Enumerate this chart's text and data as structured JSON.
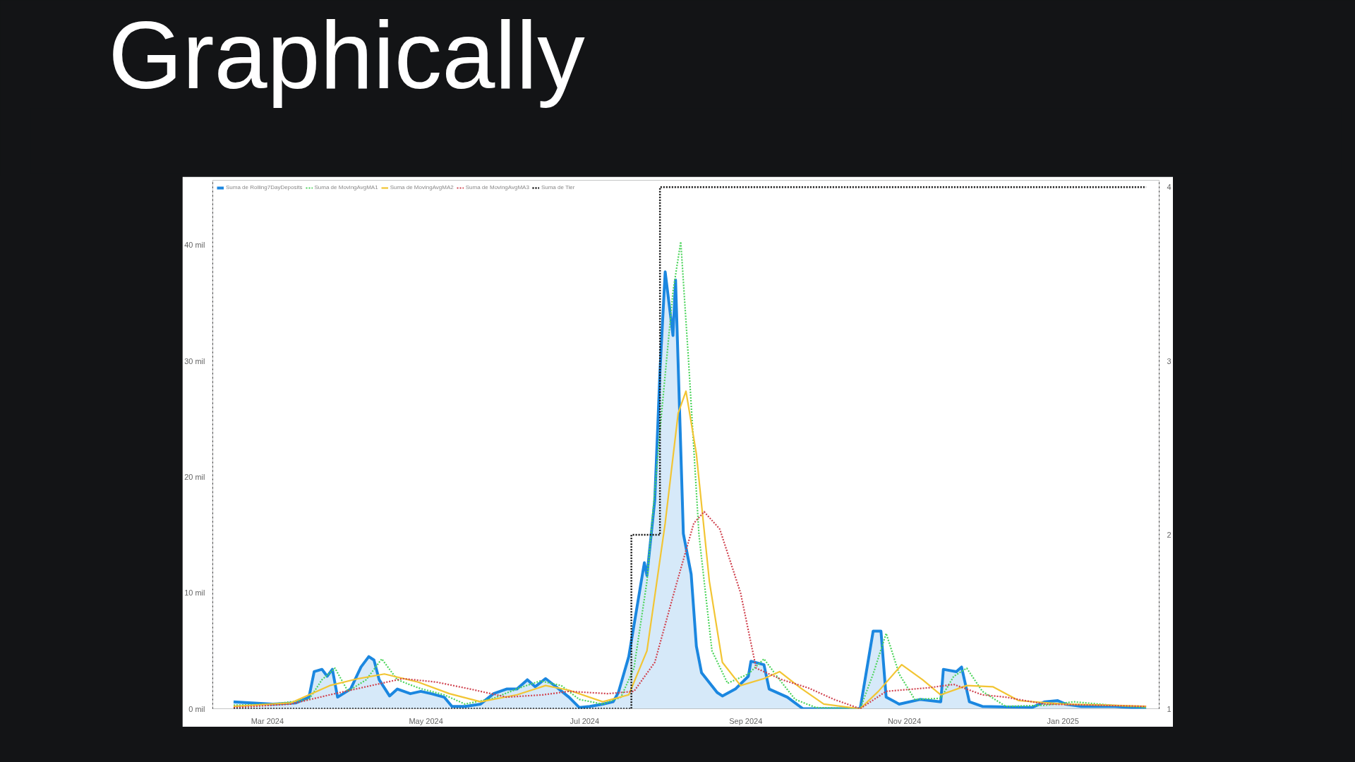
{
  "chart_data": {
    "type": "line",
    "title": "Graphically",
    "legend": "top left",
    "grid": false,
    "xlim": [
      "2024-02-09",
      "2025-02-07"
    ],
    "xticks": [
      {
        "value": "2024-03-01",
        "label": "Mar 2024"
      },
      {
        "value": "2024-05-01",
        "label": "May 2024"
      },
      {
        "value": "2024-07-01",
        "label": "Jul 2024"
      },
      {
        "value": "2024-09-01",
        "label": "Sep 2024"
      },
      {
        "value": "2024-11-01",
        "label": "Nov 2024"
      },
      {
        "value": "2025-01-01",
        "label": "Jan 2025"
      }
    ],
    "ylim": [
      0,
      45.6
    ],
    "yticks": [
      {
        "value": 0,
        "label": "0 mil"
      },
      {
        "value": 10,
        "label": "10 mil"
      },
      {
        "value": 20,
        "label": "20 mil"
      },
      {
        "value": 30,
        "label": "30 mil"
      },
      {
        "value": 40,
        "label": "40 mil"
      }
    ],
    "y2lim": [
      1,
      4.04
    ],
    "y2ticks": [
      1,
      2,
      3,
      4
    ],
    "series": [
      {
        "name": "Suma de Rolling7DayDeposits",
        "type": "area",
        "color": "#1b87e0",
        "line_style": "solid",
        "x": [
          "2024-02-17",
          "2024-02-24",
          "2024-03-03",
          "2024-03-12",
          "2024-03-17",
          "2024-03-19",
          "2024-03-22",
          "2024-03-24",
          "2024-03-26",
          "2024-03-28",
          "2024-04-02",
          "2024-04-06",
          "2024-04-09",
          "2024-04-11",
          "2024-04-13",
          "2024-04-17",
          "2024-04-20",
          "2024-04-25",
          "2024-04-29",
          "2024-05-03",
          "2024-05-08",
          "2024-05-11",
          "2024-05-16",
          "2024-05-22",
          "2024-05-27",
          "2024-06-01",
          "2024-06-05",
          "2024-06-09",
          "2024-06-12",
          "2024-06-16",
          "2024-06-20",
          "2024-06-25",
          "2024-06-29",
          "2024-07-03",
          "2024-07-08",
          "2024-07-12",
          "2024-07-14",
          "2024-07-18",
          "2024-07-24",
          "2024-07-25",
          "2024-07-28",
          "2024-07-30",
          "2024-08-01",
          "2024-08-04",
          "2024-08-05",
          "2024-08-08",
          "2024-08-11",
          "2024-08-13",
          "2024-08-15",
          "2024-08-21",
          "2024-08-23",
          "2024-08-28",
          "2024-09-02",
          "2024-09-03",
          "2024-09-08",
          "2024-09-10",
          "2024-09-17",
          "2024-09-23",
          "2024-10-15",
          "2024-10-20",
          "2024-10-23",
          "2024-10-25",
          "2024-10-30",
          "2024-11-07",
          "2024-11-15",
          "2024-11-16",
          "2024-11-21",
          "2024-11-23",
          "2024-11-26",
          "2024-12-01",
          "2024-12-20",
          "2024-12-25",
          "2024-12-30",
          "2025-01-02",
          "2025-01-08",
          "2025-01-21",
          "2025-02-02"
        ],
        "values": [
          0.6,
          0.5,
          0.4,
          0.5,
          1.0,
          3.2,
          3.4,
          2.8,
          3.4,
          1.0,
          1.7,
          3.6,
          4.5,
          4.2,
          2.5,
          1.1,
          1.7,
          1.3,
          1.5,
          1.3,
          1.0,
          0.2,
          0.2,
          0.4,
          1.3,
          1.7,
          1.7,
          2.5,
          1.9,
          2.6,
          1.9,
          1.0,
          0.1,
          0.2,
          0.4,
          0.6,
          1.4,
          4.5,
          12.6,
          11.5,
          18.0,
          29.1,
          37.7,
          32.2,
          37.0,
          15.1,
          11.6,
          5.4,
          3.1,
          1.4,
          1.1,
          1.7,
          2.8,
          4.1,
          3.8,
          1.7,
          1.0,
          0.0,
          0.0,
          6.7,
          6.7,
          1.0,
          0.4,
          0.8,
          0.6,
          3.4,
          3.2,
          3.6,
          0.6,
          0.2,
          0.1,
          0.6,
          0.7,
          0.4,
          0.2,
          0.2,
          0.0
        ]
      },
      {
        "name": "Suma de MovingAvgMA1",
        "color": "#4cd45b",
        "line_style": "dotted",
        "x": [
          "2024-02-17",
          "2024-03-03",
          "2024-03-17",
          "2024-03-22",
          "2024-03-27",
          "2024-04-01",
          "2024-04-08",
          "2024-04-14",
          "2024-04-20",
          "2024-04-28",
          "2024-05-08",
          "2024-05-16",
          "2024-05-27",
          "2024-06-06",
          "2024-06-14",
          "2024-06-22",
          "2024-06-29",
          "2024-07-08",
          "2024-07-15",
          "2024-07-20",
          "2024-07-25",
          "2024-07-30",
          "2024-08-04",
          "2024-08-07",
          "2024-08-10",
          "2024-08-14",
          "2024-08-19",
          "2024-08-25",
          "2024-09-02",
          "2024-09-08",
          "2024-09-14",
          "2024-09-20",
          "2024-09-28",
          "2024-10-15",
          "2024-10-20",
          "2024-10-25",
          "2024-10-30",
          "2024-11-05",
          "2024-11-15",
          "2024-11-20",
          "2024-11-25",
          "2024-12-01",
          "2024-12-10",
          "2024-12-25",
          "2025-01-05",
          "2025-01-20",
          "2025-02-02"
        ],
        "values": [
          0.3,
          0.4,
          0.8,
          2.5,
          3.5,
          1.5,
          2.5,
          4.3,
          2.5,
          1.8,
          1.2,
          0.4,
          0.9,
          1.8,
          2.4,
          2.0,
          0.8,
          0.4,
          1.0,
          3.5,
          11.0,
          24.0,
          36.0,
          40.3,
          30.0,
          15.0,
          5.0,
          2.2,
          3.0,
          4.3,
          2.5,
          0.8,
          0.1,
          0.0,
          3.0,
          6.5,
          3.0,
          0.8,
          0.9,
          2.8,
          3.5,
          1.5,
          0.2,
          0.3,
          0.6,
          0.3,
          0.1
        ]
      },
      {
        "name": "Suma de MovingAvgMA2",
        "color": "#f2c534",
        "line_style": "solid",
        "x": [
          "2024-02-17",
          "2024-03-10",
          "2024-03-25",
          "2024-04-05",
          "2024-04-15",
          "2024-04-28",
          "2024-05-10",
          "2024-05-22",
          "2024-06-05",
          "2024-06-16",
          "2024-06-25",
          "2024-07-08",
          "2024-07-18",
          "2024-07-25",
          "2024-08-01",
          "2024-08-06",
          "2024-08-09",
          "2024-08-13",
          "2024-08-18",
          "2024-08-23",
          "2024-08-30",
          "2024-09-08",
          "2024-09-14",
          "2024-09-22",
          "2024-10-01",
          "2024-10-15",
          "2024-10-22",
          "2024-10-31",
          "2024-11-08",
          "2024-11-15",
          "2024-11-25",
          "2024-12-05",
          "2024-12-15",
          "2025-01-01",
          "2025-01-20",
          "2025-02-02"
        ],
        "values": [
          0.2,
          0.5,
          2.0,
          2.6,
          3.0,
          2.3,
          1.3,
          0.6,
          1.2,
          2.0,
          1.6,
          0.6,
          1.2,
          5.0,
          16.0,
          25.5,
          27.4,
          22.0,
          11.0,
          4.0,
          2.0,
          2.6,
          3.2,
          1.8,
          0.4,
          0.0,
          1.5,
          3.8,
          2.5,
          1.2,
          2.0,
          1.9,
          0.7,
          0.4,
          0.3,
          0.2
        ]
      },
      {
        "name": "Suma de MovingAvgMA3",
        "color": "#d0434f",
        "line_style": "dotted",
        "x": [
          "2024-02-17",
          "2024-03-10",
          "2024-03-25",
          "2024-04-10",
          "2024-04-22",
          "2024-05-05",
          "2024-05-18",
          "2024-06-01",
          "2024-06-15",
          "2024-06-25",
          "2024-07-10",
          "2024-07-20",
          "2024-07-28",
          "2024-08-05",
          "2024-08-12",
          "2024-08-16",
          "2024-08-22",
          "2024-08-30",
          "2024-09-05",
          "2024-09-15",
          "2024-09-25",
          "2024-10-05",
          "2024-10-15",
          "2024-10-25",
          "2024-11-10",
          "2024-11-20",
          "2024-12-01",
          "2024-12-10",
          "2024-12-25",
          "2025-01-15",
          "2025-02-02"
        ],
        "values": [
          0.1,
          0.4,
          1.2,
          2.0,
          2.6,
          2.3,
          1.7,
          1.0,
          1.2,
          1.5,
          1.3,
          1.5,
          4.0,
          10.5,
          16.0,
          17.0,
          15.5,
          10.0,
          3.5,
          2.5,
          1.8,
          0.8,
          0.0,
          1.5,
          1.8,
          2.1,
          1.2,
          1.0,
          0.4,
          0.3,
          0.2
        ]
      },
      {
        "name": "Suma de Tier",
        "type": "step",
        "axis": "y2",
        "color": "#111111",
        "line_style": "dotted",
        "x": [
          "2024-02-17",
          "2024-07-19",
          "2024-07-30",
          "2025-02-02"
        ],
        "values": [
          1,
          2,
          4,
          4
        ]
      }
    ]
  }
}
